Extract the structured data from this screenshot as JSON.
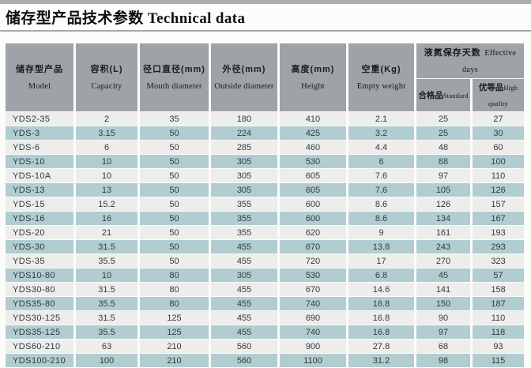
{
  "page": {
    "title": "储存型产品技术参数 Technical data"
  },
  "colors": {
    "header_bg": "#9da3a6",
    "row_light": "#ededeb",
    "row_blue": "#b1cdd1",
    "top_strip": "#a9aeb1",
    "rule": "#a3a9ac"
  },
  "table": {
    "columns": [
      {
        "zh": "储存型产品",
        "en": "Model"
      },
      {
        "zh": "容积(L)",
        "en": "Capacity"
      },
      {
        "zh": "径口直径(mm)",
        "en": "Mouth diameter"
      },
      {
        "zh": "外径(mm)",
        "en": "Outside diameter"
      },
      {
        "zh": "高度(mm)",
        "en": "Height"
      },
      {
        "zh": "空重(Kg)",
        "en": "Empty weight"
      }
    ],
    "group": {
      "zh": "液氮保存天数",
      "en": "Effective days"
    },
    "subcolumns": [
      {
        "zh": "合格品",
        "en": "Standard"
      },
      {
        "zh": "优等品",
        "en": "High quality"
      }
    ],
    "rows": [
      [
        "YDS2-35",
        "2",
        "35",
        "180",
        "410",
        "2.1",
        "25",
        "27"
      ],
      [
        "YDS-3",
        "3.15",
        "50",
        "224",
        "425",
        "3.2",
        "25",
        "30"
      ],
      [
        "YDS-6",
        "6",
        "50",
        "285",
        "460",
        "4.4",
        "48",
        "60"
      ],
      [
        "YDS-10",
        "10",
        "50",
        "305",
        "530",
        "6",
        "88",
        "100"
      ],
      [
        "YDS-10A",
        "10",
        "50",
        "305",
        "605",
        "7.6",
        "97",
        "110"
      ],
      [
        "YDS-13",
        "13",
        "50",
        "305",
        "605",
        "7.6",
        "105",
        "126"
      ],
      [
        "YDS-15",
        "15.2",
        "50",
        "355",
        "600",
        "8.6",
        "126",
        "157"
      ],
      [
        "YDS-16",
        "16",
        "50",
        "355",
        "600",
        "8.6",
        "134",
        "167"
      ],
      [
        "YDS-20",
        "21",
        "50",
        "355",
        "620",
        "9",
        "161",
        "193"
      ],
      [
        "YDS-30",
        "31.5",
        "50",
        "455",
        "670",
        "13.8",
        "243",
        "293"
      ],
      [
        "YDS-35",
        "35.5",
        "50",
        "455",
        "720",
        "17",
        "270",
        "323"
      ],
      [
        "YDS10-80",
        "10",
        "80",
        "305",
        "530",
        "6.8",
        "45",
        "57"
      ],
      [
        "YDS30-80",
        "31.5",
        "80",
        "455",
        "670",
        "14.6",
        "141",
        "158"
      ],
      [
        "YDS35-80",
        "35.5",
        "80",
        "455",
        "740",
        "16.8",
        "150",
        "187"
      ],
      [
        "YDS30-125",
        "31.5",
        "125",
        "455",
        "690",
        "16.8",
        "90",
        "110"
      ],
      [
        "YDS35-125",
        "35.5",
        "125",
        "455",
        "740",
        "16.8",
        "97",
        "118"
      ],
      [
        "YDS60-210",
        "63",
        "210",
        "560",
        "900",
        "27.8",
        "68",
        "93"
      ],
      [
        "YDS100-210",
        "100",
        "210",
        "560",
        "1100",
        "31.2",
        "98",
        "115"
      ]
    ]
  }
}
